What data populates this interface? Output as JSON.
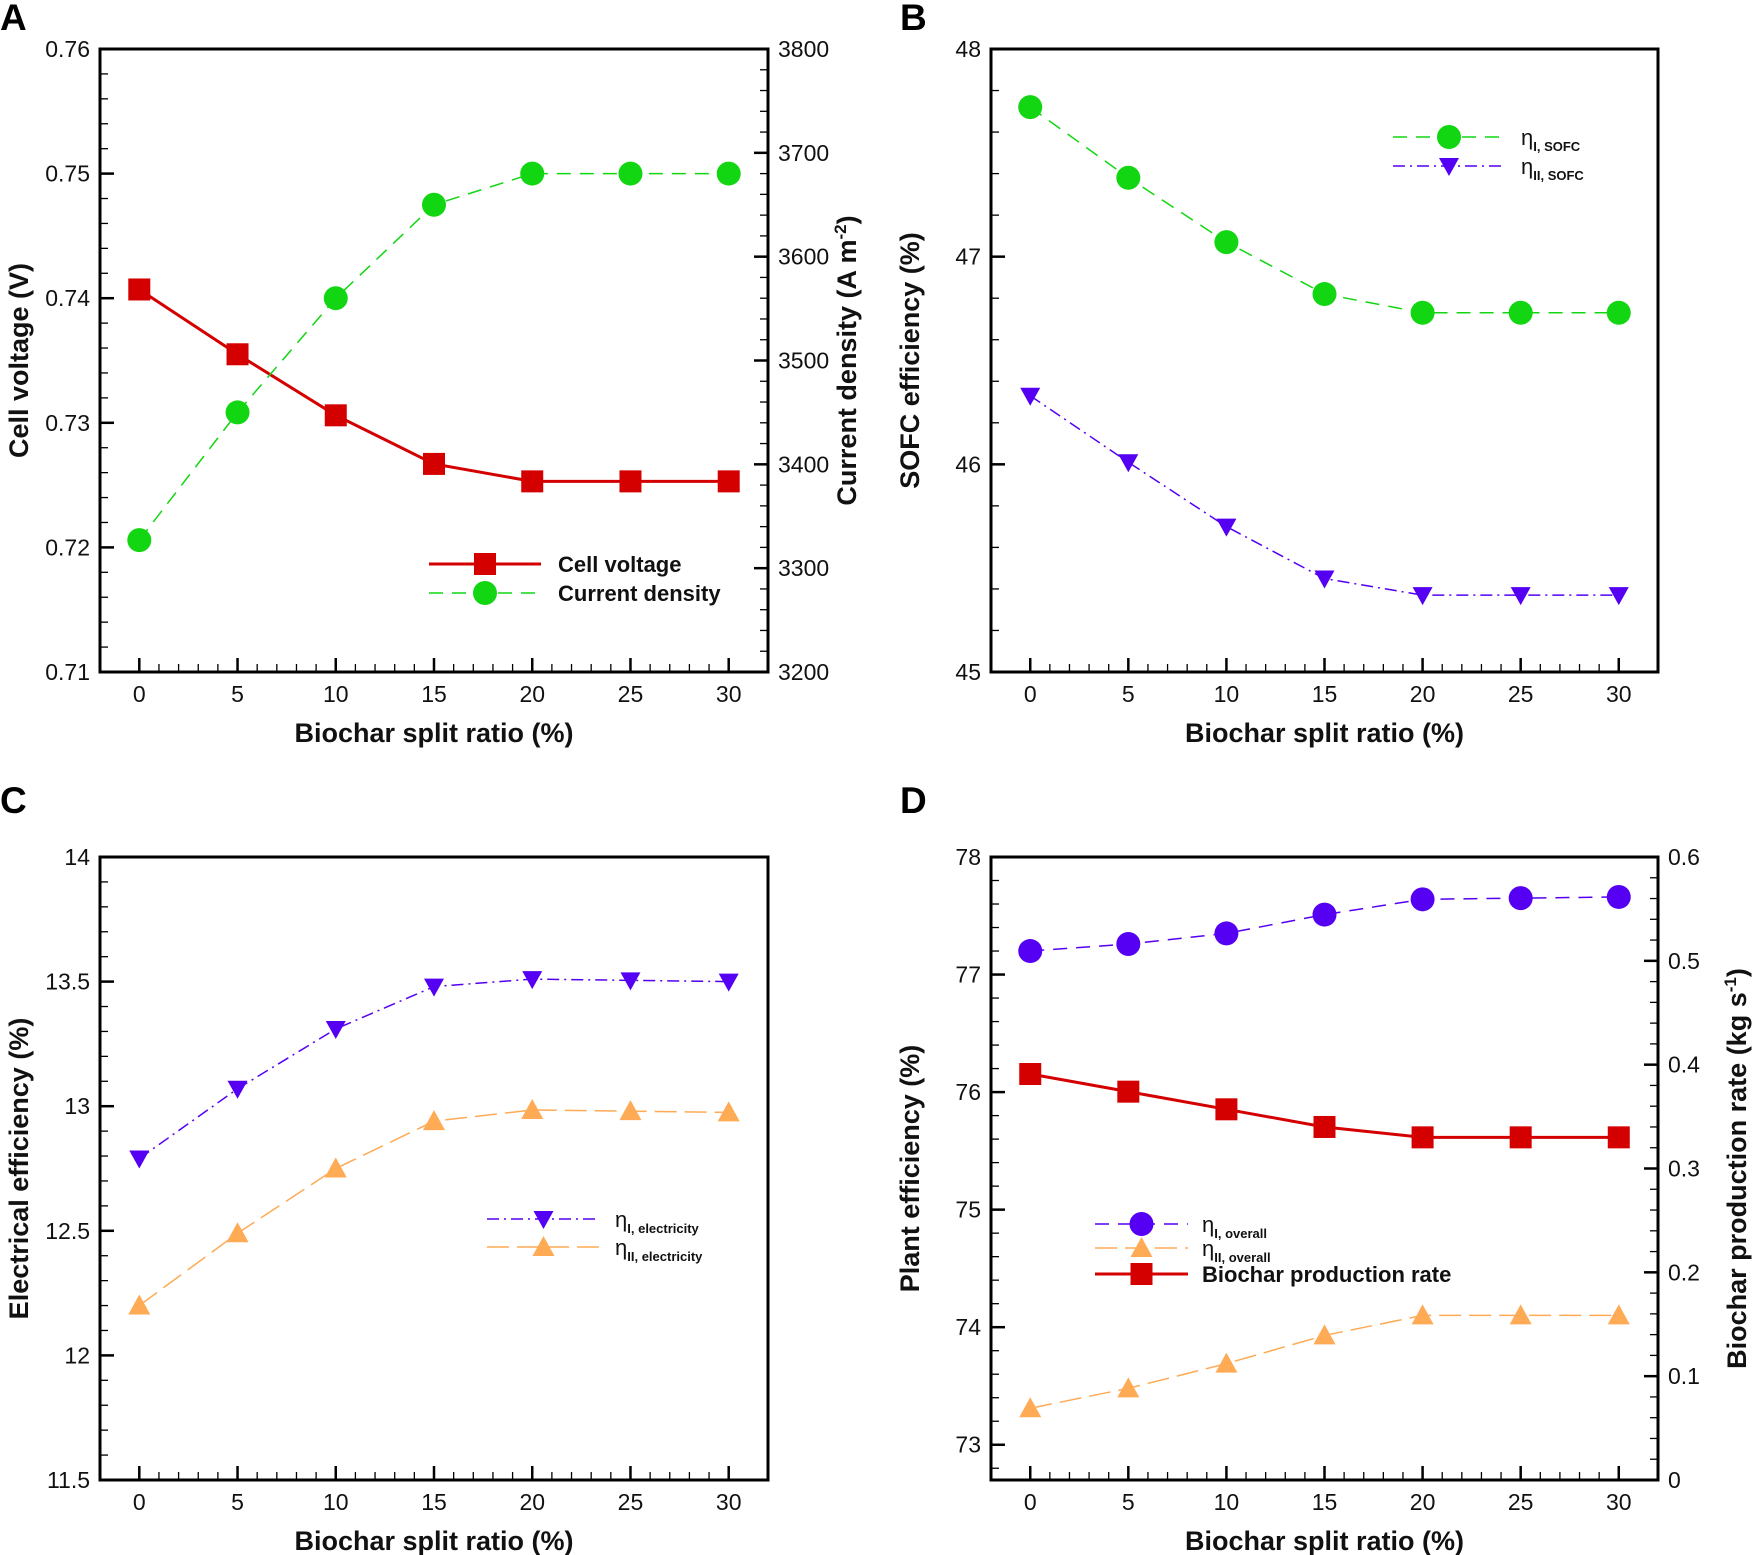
{
  "colors": {
    "red": "#d40000",
    "green": "#11d611",
    "purple": "#5500f2",
    "orange": "#ffaa55"
  },
  "chart_data": [
    {
      "panel": "A",
      "type": "line",
      "xlabel": "Biochar split ratio (%)",
      "ylabel": "Cell voltage (V)",
      "y2label": "Current density (A m",
      "y2label_sup": "-2",
      "y2label_end": ")",
      "x": [
        0,
        5,
        10,
        15,
        20,
        25,
        30
      ],
      "xlim": [
        -2,
        32
      ],
      "xticks": [
        "0",
        "5",
        "10",
        "15",
        "20",
        "25",
        "30"
      ],
      "ylim": [
        0.71,
        0.76
      ],
      "yticks": [
        "0.71",
        "0.72",
        "0.73",
        "0.74",
        "0.75",
        "0.76"
      ],
      "y2lim": [
        3200,
        3800
      ],
      "y2ticks": [
        "3200",
        "3300",
        "3400",
        "3500",
        "3600",
        "3700",
        "3800"
      ],
      "series": [
        {
          "name": "Cell voltage",
          "axis": "left",
          "color": "red",
          "marker": "square",
          "line": "solid",
          "values": [
            0.7407,
            0.7355,
            0.7306,
            0.7267,
            0.7253,
            0.7253,
            0.7253
          ]
        },
        {
          "name": "Current density",
          "axis": "right",
          "color": "green",
          "marker": "circle",
          "line": "dash",
          "values": [
            3327,
            3450,
            3560,
            3650,
            3680,
            3680,
            3680
          ]
        }
      ]
    },
    {
      "panel": "B",
      "type": "line",
      "xlabel": "Biochar split ratio (%)",
      "ylabel": "SOFC efficiency (%)",
      "x": [
        0,
        5,
        10,
        15,
        20,
        25,
        30
      ],
      "xlim": [
        -2,
        32
      ],
      "xticks": [
        "0",
        "5",
        "10",
        "15",
        "20",
        "25",
        "30"
      ],
      "ylim": [
        45,
        48
      ],
      "yticks": [
        "45",
        "46",
        "47",
        "48"
      ],
      "series": [
        {
          "name": "η",
          "sub": "I, SOFC",
          "axis": "left",
          "color": "green",
          "marker": "circle",
          "line": "dash",
          "values": [
            47.72,
            47.38,
            47.07,
            46.82,
            46.73,
            46.73,
            46.73
          ]
        },
        {
          "name": "η",
          "sub": "II, SOFC",
          "axis": "left",
          "color": "purple",
          "marker": "tri-down",
          "line": "dashdot",
          "values": [
            46.33,
            46.01,
            45.7,
            45.45,
            45.37,
            45.37,
            45.37
          ]
        }
      ]
    },
    {
      "panel": "C",
      "type": "line",
      "xlabel": "Biochar split ratio (%)",
      "ylabel": "Electrical efficiency (%)",
      "x": [
        0,
        5,
        10,
        15,
        20,
        25,
        30
      ],
      "xlim": [
        -2,
        32
      ],
      "xticks": [
        "0",
        "5",
        "10",
        "15",
        "20",
        "25",
        "30"
      ],
      "ylim": [
        11.5,
        14
      ],
      "yticks": [
        "11.5",
        "12",
        "12.5",
        "13",
        "13.5",
        "14"
      ],
      "series": [
        {
          "name": "η",
          "sub": "I, electricity",
          "axis": "left",
          "color": "purple",
          "marker": "tri-down",
          "line": "dashdot",
          "values": [
            12.79,
            13.07,
            13.31,
            13.48,
            13.51,
            13.505,
            13.5
          ]
        },
        {
          "name": "η",
          "sub": "II, electricity",
          "axis": "left",
          "color": "orange",
          "marker": "tri-up",
          "line": "longdash",
          "values": [
            12.2,
            12.49,
            12.75,
            12.94,
            12.985,
            12.98,
            12.975
          ]
        }
      ]
    },
    {
      "panel": "D",
      "type": "line",
      "xlabel": "Biochar split ratio (%)",
      "ylabel": "Plant efficiency (%)",
      "y2label": "Biochar production rate (kg s",
      "y2label_sup": "-1",
      "y2label_end": ")",
      "x": [
        0,
        5,
        10,
        15,
        20,
        25,
        30
      ],
      "xlim": [
        -2,
        32
      ],
      "xticks": [
        "0",
        "5",
        "10",
        "15",
        "20",
        "25",
        "30"
      ],
      "ylim": [
        72.7,
        78
      ],
      "yticks": [
        "73",
        "74",
        "75",
        "76",
        "77",
        "78"
      ],
      "y2lim": [
        0,
        0.6
      ],
      "y2ticks": [
        "0",
        "0.1",
        "0.2",
        "0.3",
        "0.4",
        "0.5",
        "0.6"
      ],
      "series": [
        {
          "name": "η",
          "sub": "I, overall",
          "axis": "left",
          "color": "purple",
          "marker": "circle",
          "line": "dash",
          "values": [
            77.2,
            77.26,
            77.35,
            77.51,
            77.64,
            77.65,
            77.66
          ]
        },
        {
          "name": "η",
          "sub": "II, overall",
          "axis": "left",
          "color": "orange",
          "marker": "tri-up",
          "line": "longdash",
          "values": [
            73.31,
            73.48,
            73.69,
            73.93,
            74.1,
            74.1,
            74.1
          ]
        },
        {
          "name": "Biochar production rate",
          "axis": "right",
          "color": "red",
          "marker": "square",
          "line": "solid",
          "values": [
            0.391,
            0.374,
            0.357,
            0.34,
            0.33,
            0.33,
            0.33
          ]
        }
      ]
    }
  ]
}
